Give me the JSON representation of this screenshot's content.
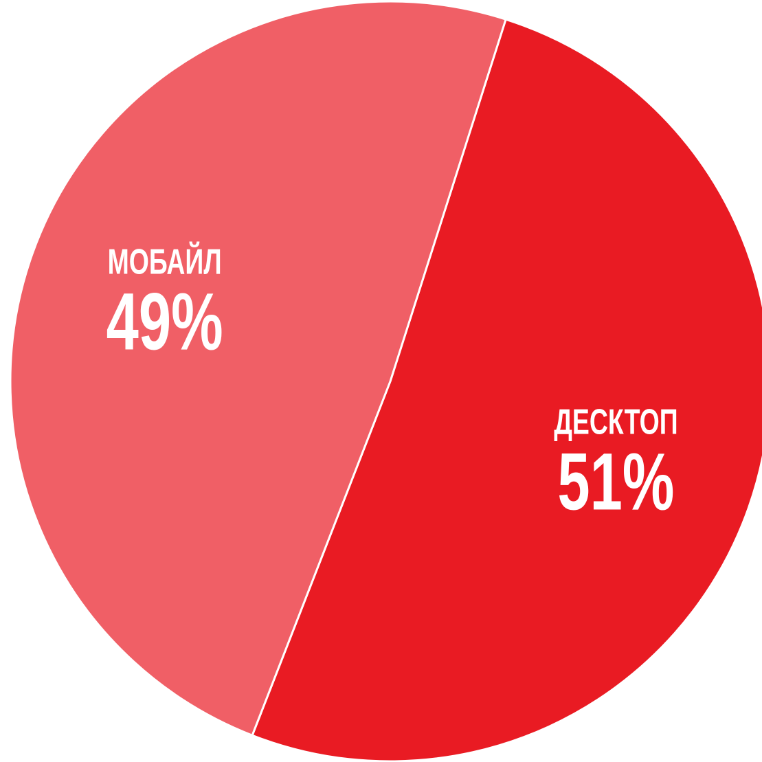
{
  "chart_data": {
    "type": "pie",
    "categories": [
      "ДЕСКТОП",
      "МОБАЙЛ"
    ],
    "values": [
      51,
      49
    ],
    "value_labels": [
      "51%",
      "49%"
    ],
    "colors": [
      "#e91b23",
      "#f05f66"
    ]
  }
}
